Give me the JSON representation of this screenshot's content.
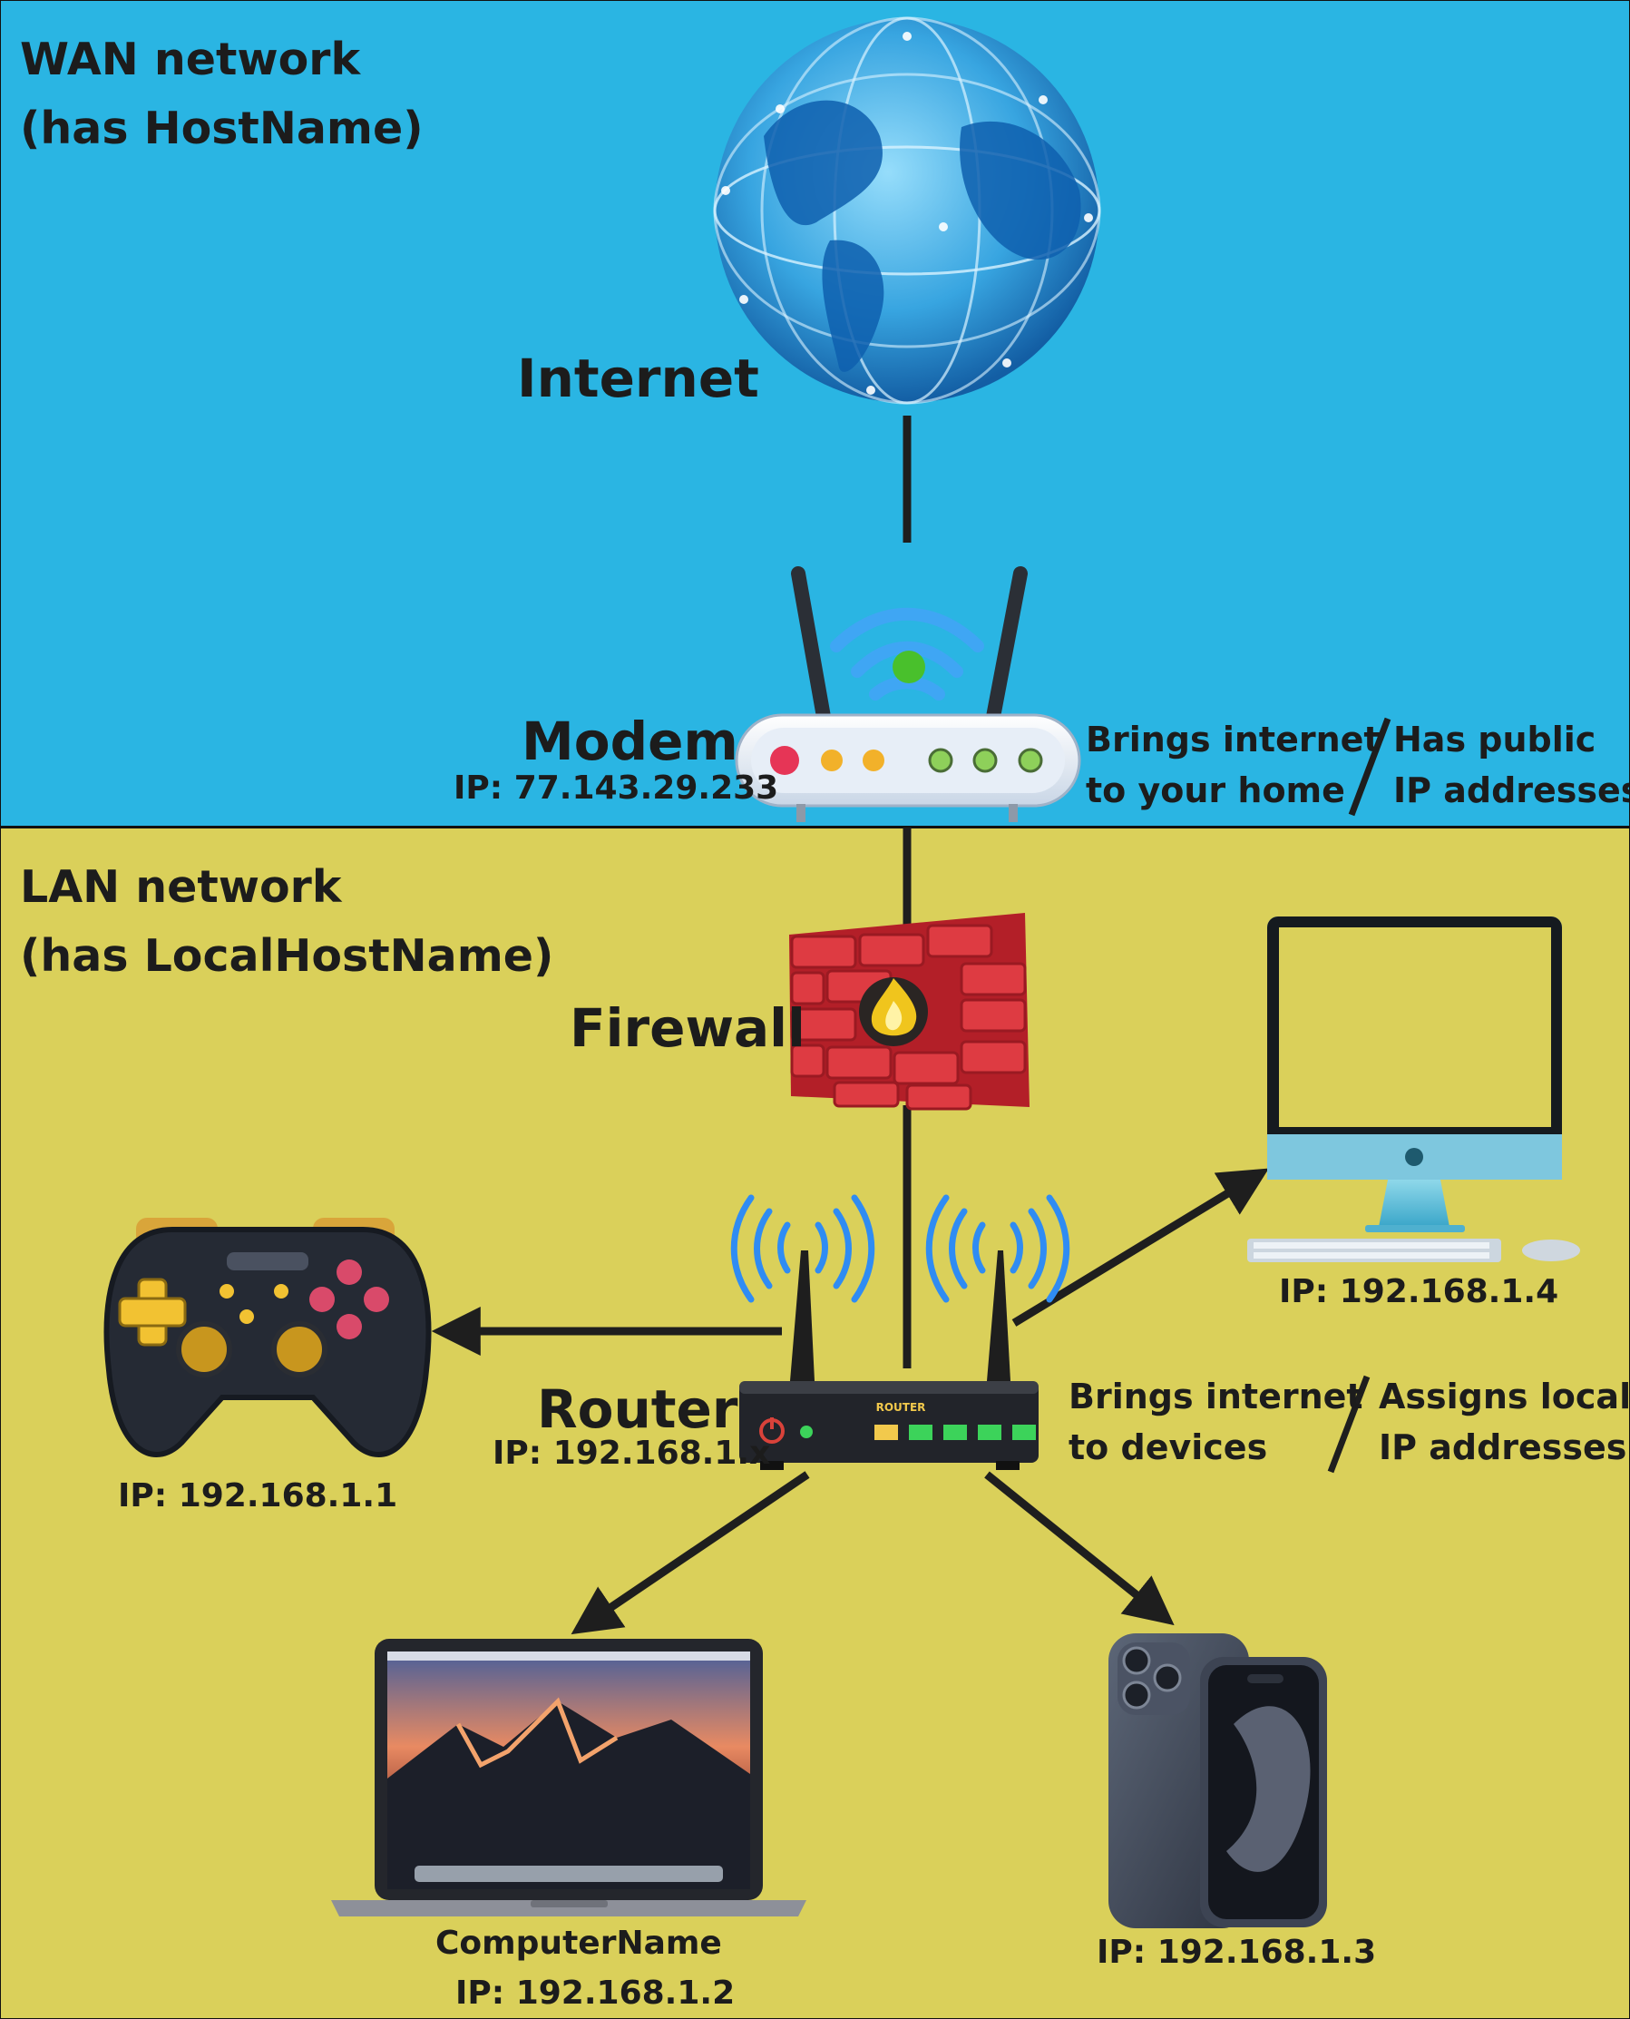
{
  "zones": {
    "wan": {
      "line1": "WAN network",
      "line2": "(has HostName)"
    },
    "lan": {
      "line1": "LAN network",
      "line2": "(has LocalHostName)"
    }
  },
  "nodes": {
    "internet": {
      "label": "Internet"
    },
    "modem": {
      "label": "Modem",
      "ip": "IP: 77.143.29.233",
      "desc_left": [
        "Brings internet",
        "to your home"
      ],
      "desc_right": [
        "Has public",
        "IP addresses"
      ]
    },
    "firewall": {
      "label": "Firewall"
    },
    "router": {
      "label": "Router",
      "ip": "IP: 192.168.1.x",
      "device_text": "ROUTER",
      "desc_left": [
        "Brings internet",
        "to devices"
      ],
      "desc_right": [
        "Assigns local",
        "IP addresses"
      ]
    },
    "gamepad": {
      "ip": "IP: 192.168.1.1"
    },
    "imac": {
      "ip": "IP: 192.168.1.4"
    },
    "laptop": {
      "name": "ComputerName",
      "ip": "IP: 192.168.1.2"
    },
    "phone": {
      "ip": "IP: 192.168.1.3"
    }
  },
  "colors": {
    "wan_bg": "#2AB5E3",
    "lan_bg": "#DAD05A",
    "line": "#1e1e1e",
    "signal": "#2F8CF3",
    "firewall_brick": "#D8323A"
  }
}
